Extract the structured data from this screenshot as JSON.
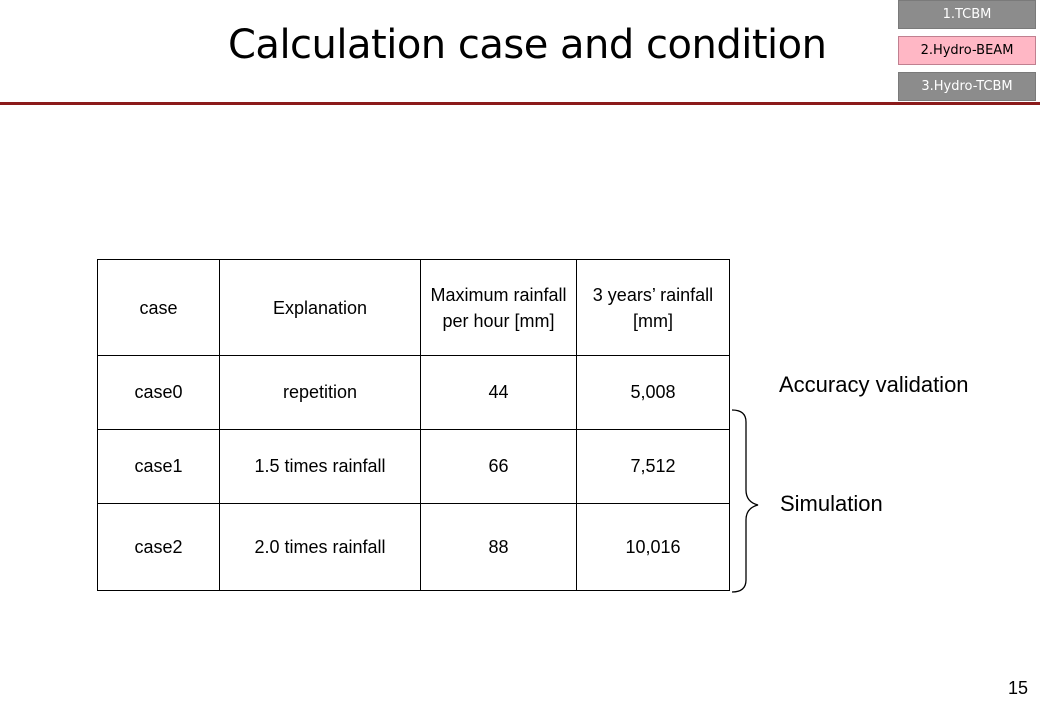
{
  "slide": {
    "title": "Calculation case and condition",
    "page_number": "15"
  },
  "nav": {
    "tabs": [
      {
        "label": "1.TCBM"
      },
      {
        "label": "2.Hydro-BEAM"
      },
      {
        "label": "3.Hydro-TCBM"
      }
    ],
    "active_tab_color": "#ffb7c5",
    "inactive_tab_color": "#8c8c8c"
  },
  "table": {
    "headers": [
      "case",
      "Explanation",
      "Maximum rainfall per hour [mm]",
      "3 years’ rainfall [mm]"
    ],
    "rows": [
      [
        "case0",
        "repetition",
        "44",
        "5,008"
      ],
      [
        "case1",
        "1.5 times rainfall",
        "66",
        "7,512"
      ],
      [
        "case2",
        "2.0 times rainfall",
        "88",
        "10,016"
      ]
    ]
  },
  "annotations": {
    "accuracy": "Accuracy validation",
    "simulation": "Simulation"
  },
  "colors": {
    "rule": "#8b1a1a"
  }
}
